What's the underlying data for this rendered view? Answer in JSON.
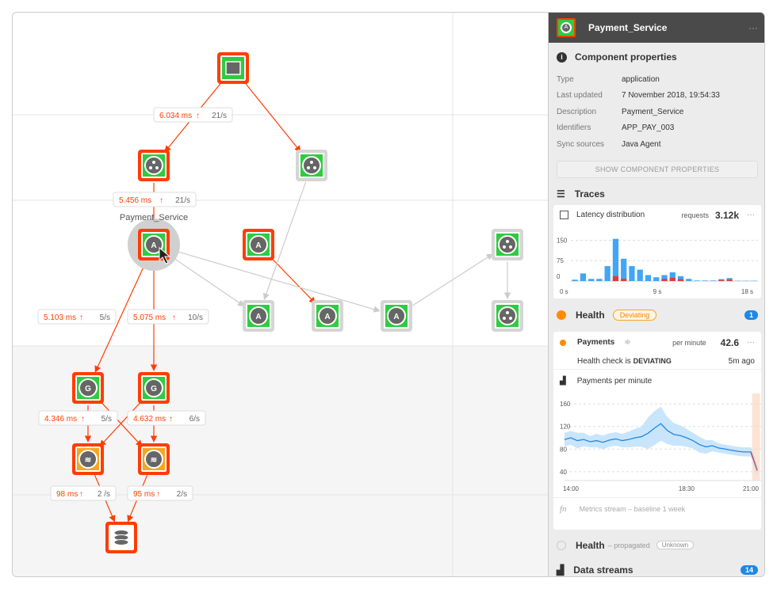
{
  "graph": {
    "selected_label": "Payment_Service",
    "edge_labels": [
      {
        "latency": "6.034 ms",
        "rate": "21/s"
      },
      {
        "latency": "5.456 ms",
        "rate": "21/s"
      },
      {
        "latency": "5.103 ms",
        "rate": "5/s"
      },
      {
        "latency": "5.075 ms",
        "rate": "10/s"
      },
      {
        "latency": "4.346 ms",
        "rate": "5/s"
      },
      {
        "latency": "4.632 ms",
        "rate": "6/s"
      },
      {
        "latency": "98 ms",
        "rate": "2 /s"
      },
      {
        "latency": "95 ms",
        "rate": "2/s"
      }
    ],
    "colors": {
      "critical": "#ff3d00",
      "healthy": "#2ecc40",
      "deviating": "#f5a623",
      "neutral": "#cccccc"
    }
  },
  "panel": {
    "title": "Payment_Service",
    "more": "···",
    "props_title": "Component properties",
    "props": [
      {
        "k": "Type",
        "v": "application"
      },
      {
        "k": "Last updated",
        "v": "7 November 2018, 19:54:33"
      },
      {
        "k": "Description",
        "v": "Payment_Service"
      },
      {
        "k": "Identifiers",
        "v": "APP_PAY_003"
      },
      {
        "k": "Sync sources",
        "v": "Java Agent"
      }
    ],
    "show_props": "SHOW COMPONENT PROPERTIES",
    "traces": "Traces",
    "latency": {
      "title": "Latency distribution",
      "req_label": "requests",
      "req_value": "3.12k",
      "more": "···"
    },
    "health": {
      "title": "Health",
      "badge": "Deviating",
      "count": "1"
    },
    "payments": {
      "name": "Payments",
      "unit": "per minute",
      "value": "42.6",
      "more": "···",
      "check_prefix": "Health check is ",
      "check_state": "DEVIATING",
      "ago": "5m ago"
    },
    "ppm_title": "Payments per minute",
    "stream_note": "Metrics stream – baseline 1 week",
    "health_prop": {
      "title": "Health",
      "sub": "– propagated",
      "badge": "Unknown"
    },
    "data_streams": {
      "title": "Data streams",
      "count": "14"
    }
  },
  "chart_data": [
    {
      "type": "bar",
      "title": "Latency distribution",
      "x_ticks": [
        "0 s",
        "9 s",
        "18 s"
      ],
      "y_ticks": [
        "0",
        "75",
        "150"
      ],
      "xlim": [
        0,
        18
      ],
      "series": [
        {
          "name": "normal",
          "color": "#42a5f5",
          "values": [
            5,
            28,
            8,
            8,
            55,
            155,
            82,
            55,
            42,
            22,
            14,
            22,
            32,
            18,
            8,
            2,
            2,
            2,
            7,
            11,
            1,
            1,
            1
          ]
        },
        {
          "name": "deviating",
          "color": "#e53935",
          "values": [
            0,
            0,
            0,
            0,
            0,
            18,
            8,
            0,
            0,
            0,
            0,
            8,
            12,
            7,
            0,
            0,
            0,
            0,
            4,
            5,
            0,
            0,
            0
          ]
        }
      ]
    },
    {
      "type": "line",
      "title": "Payments per minute",
      "x_ticks": [
        "14:00",
        "18:30",
        "21:00"
      ],
      "y_ticks": [
        "40",
        "80",
        "120",
        "160"
      ],
      "ylim": [
        30,
        170
      ],
      "x_hours": [
        13.75,
        14,
        14.25,
        14.5,
        14.75,
        15,
        15.25,
        15.5,
        15.75,
        16,
        16.25,
        16.5,
        16.75,
        17,
        17.25,
        17.5,
        17.75,
        18,
        18.25,
        18.5,
        18.75,
        19,
        19.25,
        19.5,
        19.75,
        20,
        20.25,
        20.5,
        20.75,
        21,
        21.1,
        21.25
      ],
      "values": [
        97,
        100,
        95,
        97,
        93,
        95,
        92,
        96,
        98,
        95,
        97,
        100,
        102,
        108,
        117,
        125,
        113,
        106,
        104,
        100,
        95,
        88,
        84,
        86,
        82,
        80,
        78,
        76,
        75,
        75,
        62,
        42
      ],
      "band": [
        12,
        12,
        14,
        12,
        10,
        12,
        12,
        12,
        12,
        12,
        14,
        16,
        18,
        28,
        30,
        30,
        24,
        20,
        18,
        16,
        14,
        14,
        12,
        10,
        8,
        8,
        8,
        8,
        8,
        8,
        10,
        10
      ]
    }
  ]
}
